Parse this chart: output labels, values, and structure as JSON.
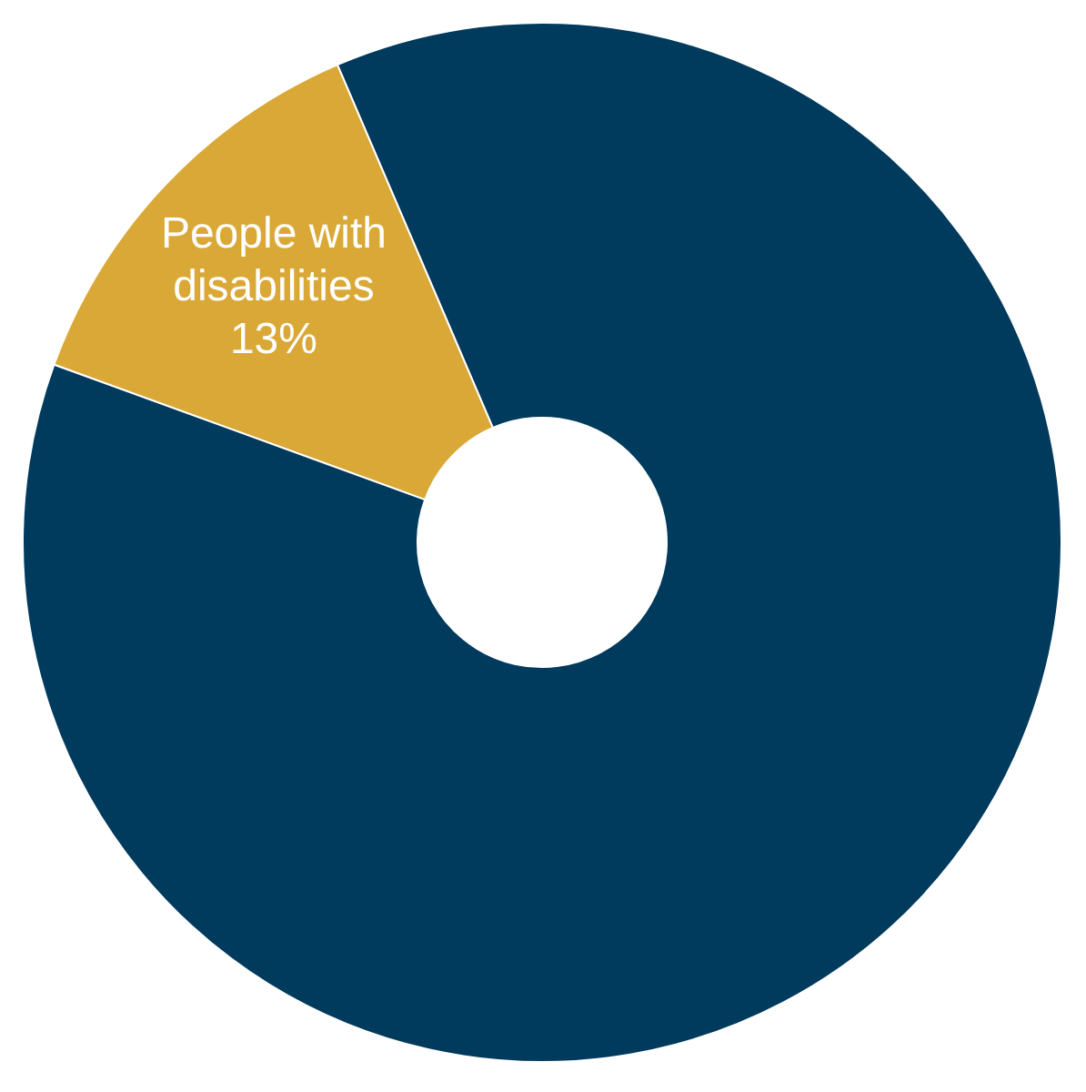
{
  "chart_data": {
    "type": "donut",
    "categories": [
      "People with disabilities",
      null
    ],
    "values": [
      13,
      87
    ],
    "colors": [
      "#d9a836",
      "#003a5c"
    ],
    "value_labels": [
      "13%",
      null
    ],
    "legend": false
  }
}
